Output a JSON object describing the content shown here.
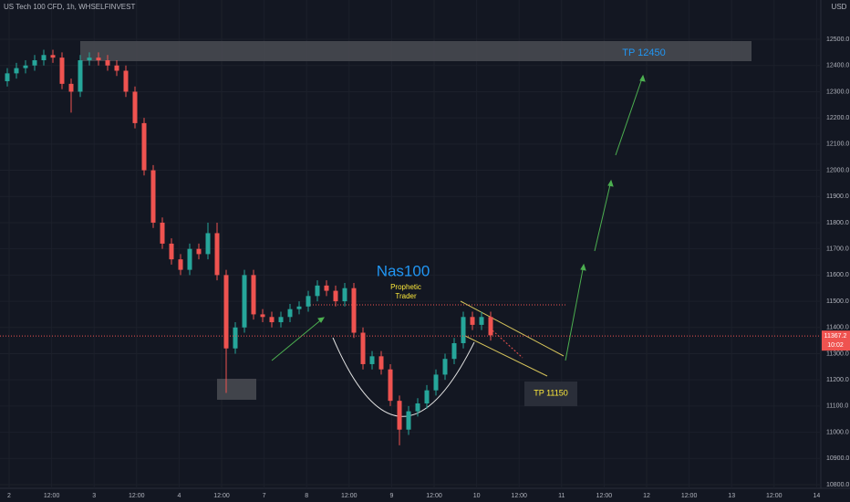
{
  "chart_data": {
    "type": "candlestick",
    "title": "US Tech 100 CFD, 1h, WHSELFINVEST",
    "currency": "USD",
    "x_labels": [
      "2",
      "12:00",
      "3",
      "12:00",
      "4",
      "12:00",
      "7",
      "8",
      "12:00",
      "9",
      "12:00",
      "10",
      "12:00",
      "11",
      "12:00",
      "12",
      "12:00",
      "13",
      "12:00",
      "14"
    ],
    "open": [
      12340,
      12370,
      12390,
      12400,
      12420,
      12440,
      12430,
      12330,
      12300,
      12420,
      12430,
      12420,
      12400,
      12380,
      12300,
      12180,
      12000,
      11800,
      11720,
      11660,
      11620,
      11700,
      11680,
      11760,
      11600,
      11320,
      11400,
      11600,
      11450,
      11440,
      11420,
      11440,
      11470,
      11480,
      11520,
      11560,
      11540,
      11500,
      11550,
      11380,
      11260,
      11290,
      11240,
      11120,
      11010,
      11080,
      11110,
      11160,
      11220,
      11280,
      11340,
      11440,
      11410,
      11440
    ],
    "high": [
      12390,
      12410,
      12420,
      12440,
      12460,
      12460,
      12450,
      12350,
      12440,
      12450,
      12450,
      12440,
      12420,
      12400,
      12320,
      12200,
      12020,
      11820,
      11740,
      11680,
      11720,
      11720,
      11800,
      11800,
      11620,
      11420,
      11620,
      11620,
      11470,
      11460,
      11460,
      11490,
      11500,
      11540,
      11580,
      11580,
      11560,
      11570,
      11570,
      11400,
      11310,
      11310,
      11260,
      11140,
      11100,
      11130,
      11180,
      11240,
      11300,
      11360,
      11460,
      11460,
      11460,
      11460
    ],
    "low": [
      12320,
      12350,
      12370,
      12380,
      12400,
      12410,
      12310,
      12220,
      12280,
      12400,
      12400,
      12380,
      12360,
      12280,
      12160,
      11980,
      11780,
      11700,
      11640,
      11600,
      11600,
      11660,
      11660,
      11580,
      11150,
      11300,
      11380,
      11430,
      11420,
      11400,
      11400,
      11420,
      11450,
      11460,
      11500,
      11520,
      11480,
      11480,
      11360,
      11240,
      11240,
      11220,
      11100,
      10950,
      10990,
      11060,
      11090,
      11140,
      11200,
      11260,
      11320,
      11390,
      11390,
      11350
    ],
    "close": [
      12370,
      12390,
      12400,
      12420,
      12440,
      12430,
      12330,
      12300,
      12420,
      12430,
      12420,
      12400,
      12380,
      12300,
      12180,
      12000,
      11800,
      11720,
      11660,
      11620,
      11700,
      11680,
      11760,
      11600,
      11320,
      11400,
      11600,
      11450,
      11440,
      11420,
      11440,
      11470,
      11480,
      11520,
      11560,
      11540,
      11500,
      11550,
      11380,
      11260,
      11290,
      11240,
      11120,
      11010,
      11080,
      11110,
      11160,
      11220,
      11280,
      11340,
      11440,
      11410,
      11440,
      11370
    ],
    "up_color": "#26a69a",
    "down_color": "#ef5350",
    "ylim": [
      10786,
      12650
    ],
    "yticks": [
      {
        "value": 10800,
        "label": "10800.0"
      },
      {
        "value": 10900,
        "label": "10900.0"
      },
      {
        "value": 11000,
        "label": "11000.0"
      },
      {
        "value": 11100,
        "label": "11100.0"
      },
      {
        "value": 11200,
        "label": "11200.0"
      },
      {
        "value": 11300,
        "label": "11300.0"
      },
      {
        "value": 11400,
        "label": "11400.0"
      },
      {
        "value": 11500,
        "label": "11500.0"
      },
      {
        "value": 11600,
        "label": "11600.0"
      },
      {
        "value": 11700,
        "label": "11700.0"
      },
      {
        "value": 11800,
        "label": "11800.0"
      },
      {
        "value": 11900,
        "label": "11900.0"
      },
      {
        "value": 12000,
        "label": "12000.0"
      },
      {
        "value": 12100,
        "label": "12100.0"
      },
      {
        "value": 12200,
        "label": "12200.0"
      },
      {
        "value": 12300,
        "label": "12300.0"
      },
      {
        "value": 12400,
        "label": "12400.0"
      },
      {
        "value": 12500,
        "label": "12500.0"
      }
    ],
    "last_price": 11367.2,
    "countdown": "10:02",
    "grid": true,
    "annotations": {
      "tp_high": "TP 12450",
      "symbol": "Nas100",
      "author_1": "Prophetic",
      "author_2": "Trader",
      "tp_low": "TP 11150"
    }
  }
}
